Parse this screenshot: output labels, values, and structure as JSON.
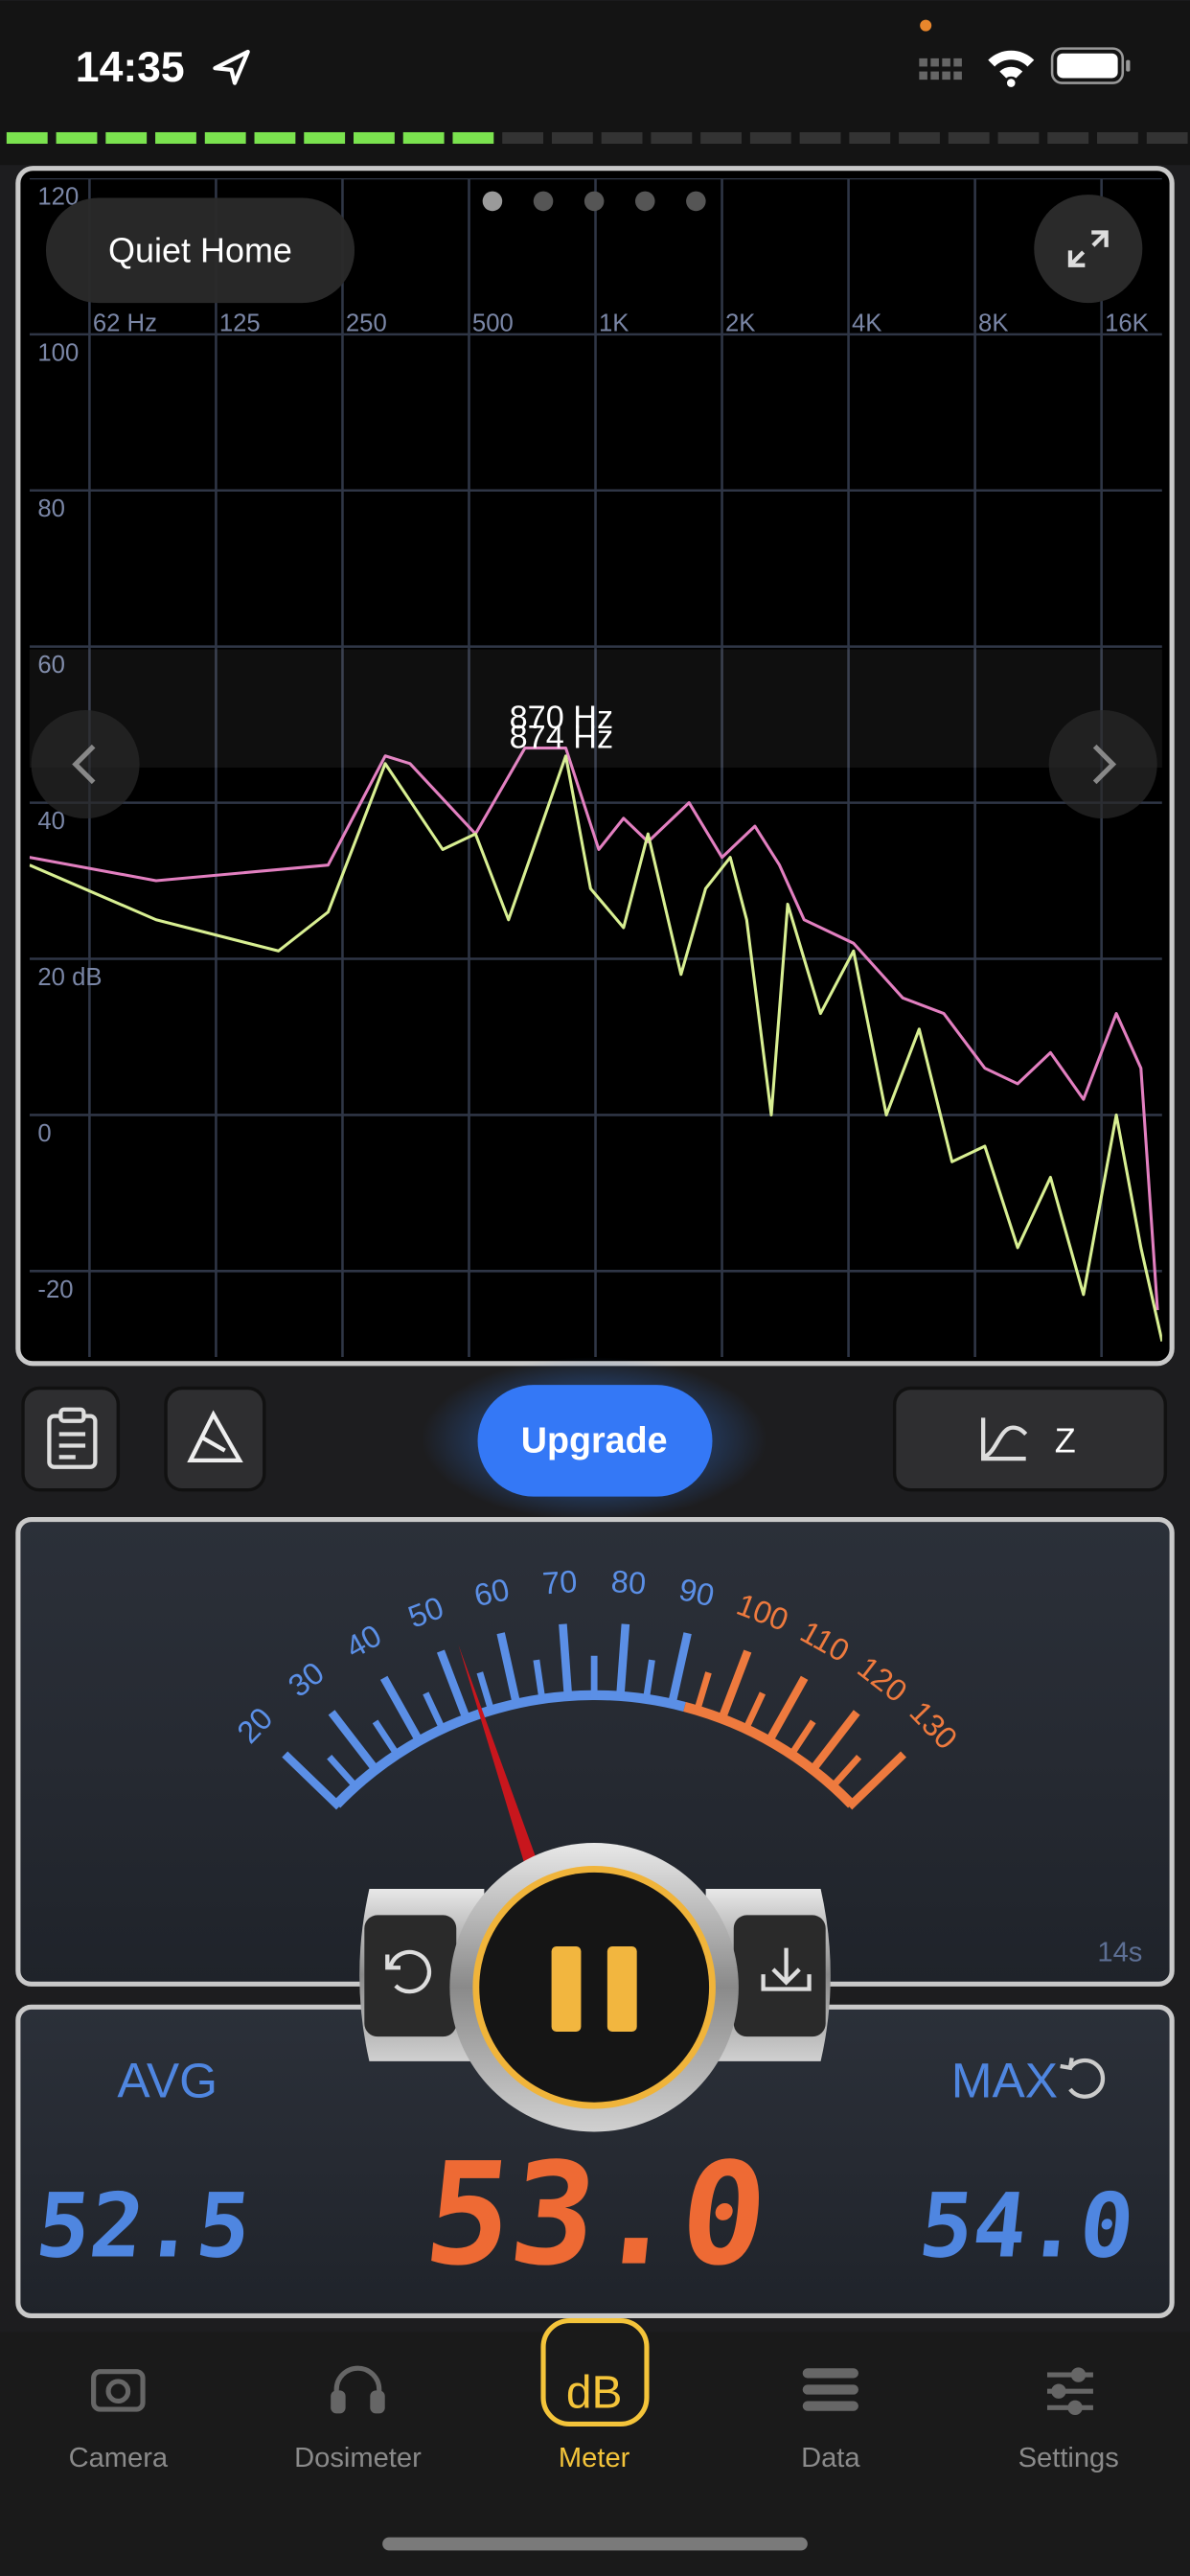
{
  "status_bar": {
    "time": "14:35"
  },
  "spectrum": {
    "type": "line",
    "preset": "Quiet Home",
    "xscale": "log",
    "xlim": [
      45,
      22300
    ],
    "ylim": [
      -31,
      120
    ],
    "xticks": [
      {
        "value": 62.5,
        "label": "62 Hz"
      },
      125,
      250,
      500,
      {
        "value": 1000,
        "label": "1K"
      },
      {
        "value": 2000,
        "label": "2K"
      },
      {
        "value": 4000,
        "label": "4K"
      },
      {
        "value": 8000,
        "label": "8K"
      },
      {
        "value": 16000,
        "label": "16K"
      }
    ],
    "yticks": [
      120,
      100,
      80,
      60,
      40,
      {
        "value": 20,
        "label": "20 dB"
      },
      0,
      -20
    ],
    "grid": true,
    "peak_labels": [
      "870 Hz",
      "874 Hz"
    ],
    "series": [
      {
        "color": "#e27fc0",
        "x": [
          45,
          90,
          231,
          316,
          362,
          518,
          679,
          850,
          1018,
          1166,
          1334,
          1670,
          2000,
          2394,
          2741,
          3137,
          4110,
          5385,
          6740,
          8440,
          10110,
          12100,
          14490,
          17350,
          19860,
          21740
        ],
        "values": [
          33,
          30,
          32,
          46,
          45,
          36,
          47,
          47,
          34,
          38,
          35,
          40,
          33,
          37,
          32,
          25,
          22,
          15,
          13,
          6,
          4,
          8,
          2,
          13,
          6,
          -25
        ]
      },
      {
        "color": "#d8ef92",
        "x": [
          45,
          90,
          176,
          231,
          316,
          433,
          518,
          621,
          850,
          973,
          1166,
          1334,
          1597,
          1828,
          2092,
          2289,
          2620,
          2866,
          3433,
          4110,
          4920,
          5890,
          7050,
          8440,
          10110,
          12100,
          14490,
          17350,
          19860,
          22300
        ],
        "values": [
          32,
          25,
          21,
          26,
          45,
          34,
          36,
          25,
          46,
          29,
          24,
          36,
          18,
          29,
          33,
          25,
          0,
          27,
          13,
          21,
          0,
          11,
          -6,
          -4,
          -17,
          -8,
          -23,
          0,
          -17,
          -29
        ]
      }
    ]
  },
  "toolbar": {
    "upgrade": "Upgrade",
    "weighting": "Z"
  },
  "gauge": {
    "ticks": [
      20,
      30,
      40,
      50,
      60,
      70,
      80,
      90,
      100,
      110,
      120,
      130
    ],
    "zones": [
      {
        "range": [
          20,
          92.5
        ],
        "color": "#5b8fe6"
      },
      {
        "range": [
          92.5,
          130
        ],
        "color": "#ee7a3e"
      }
    ],
    "elapsed": "14s"
  },
  "readings": {
    "avg_label": "AVG",
    "avg": "52.5",
    "current": "53.0",
    "max_label": "MAX",
    "max": "54.0"
  },
  "tabs": [
    {
      "label": "Camera"
    },
    {
      "label": "Dosimeter"
    },
    {
      "label": "Meter",
      "icon_text": "dB",
      "active": true
    },
    {
      "label": "Data"
    },
    {
      "label": "Settings"
    }
  ]
}
